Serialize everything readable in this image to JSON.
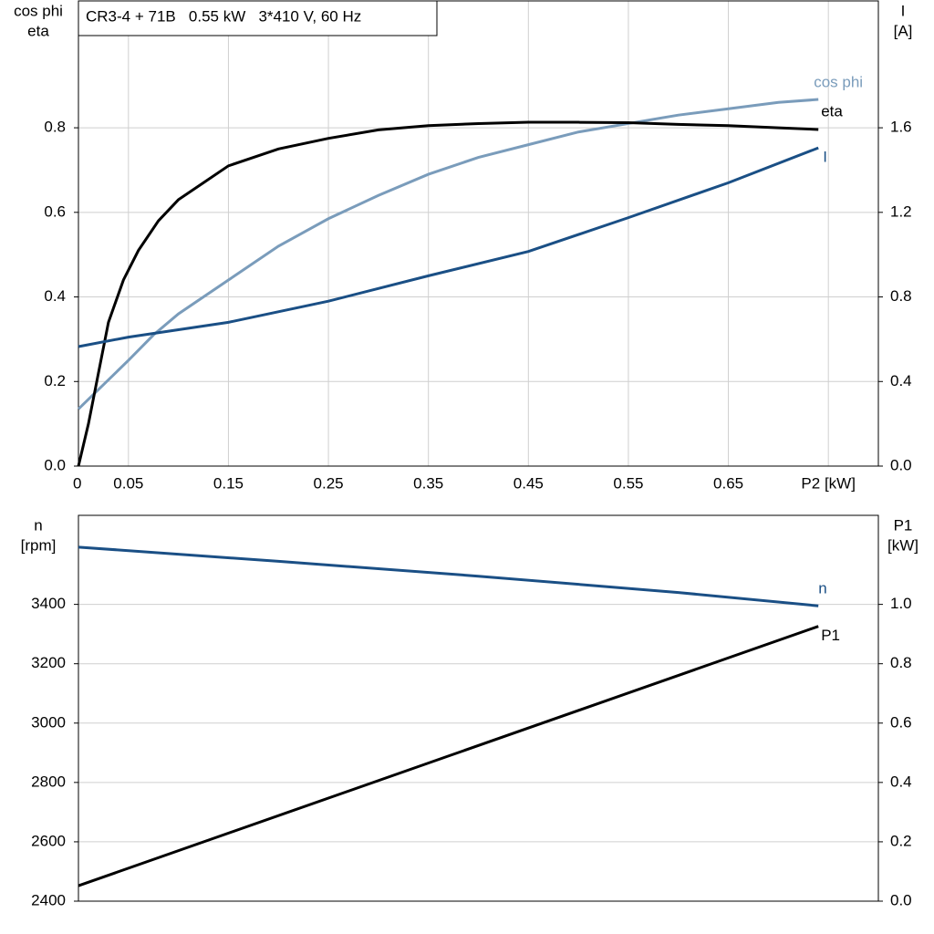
{
  "chart_data": [
    {
      "type": "line",
      "title": "CR3-4 + 71B   0.55 kW   3*410 V, 60 Hz",
      "ylabel": [
        "cos phi",
        "eta"
      ],
      "y2label": [
        "I",
        "[A]"
      ],
      "xlim": [
        0,
        0.8
      ],
      "xticks": [
        {
          "value": 0,
          "label": "0"
        },
        0.05,
        0.15,
        0.25,
        0.35,
        0.45,
        0.55,
        0.65,
        {
          "value": 0.75,
          "label": "P2 [kW]"
        }
      ],
      "ylim": [
        0,
        1.1
      ],
      "yticks": [
        {
          "value": 0,
          "label": "0.0"
        },
        0.2,
        0.4,
        0.6,
        0.8
      ],
      "y2lim": [
        0,
        2.2
      ],
      "y2ticks": [
        {
          "value": 0,
          "label": "0.0"
        },
        0.4,
        0.8,
        1.2,
        1.6
      ],
      "grid": true,
      "series": [
        {
          "name": "cos phi",
          "color": "#7a9cbb",
          "x": [
            0,
            0.05,
            0.075,
            0.1,
            0.15,
            0.2,
            0.25,
            0.3,
            0.35,
            0.4,
            0.45,
            0.5,
            0.55,
            0.6,
            0.65,
            0.7,
            0.74
          ],
          "values": [
            0.135,
            0.25,
            0.31,
            0.36,
            0.44,
            0.52,
            0.585,
            0.64,
            0.69,
            0.73,
            0.76,
            0.79,
            0.81,
            0.83,
            0.845,
            0.86,
            0.867
          ]
        },
        {
          "name": "eta",
          "color": "#000000",
          "x": [
            0,
            0.01,
            0.02,
            0.03,
            0.045,
            0.06,
            0.08,
            0.1,
            0.125,
            0.15,
            0.2,
            0.25,
            0.3,
            0.35,
            0.4,
            0.45,
            0.5,
            0.55,
            0.6,
            0.65,
            0.7,
            0.74
          ],
          "values": [
            0,
            0.1,
            0.22,
            0.34,
            0.44,
            0.51,
            0.58,
            0.63,
            0.67,
            0.71,
            0.75,
            0.775,
            0.795,
            0.805,
            0.81,
            0.813,
            0.813,
            0.812,
            0.808,
            0.805,
            0.8,
            0.796
          ]
        },
        {
          "name": "I",
          "color": "#1a4f85",
          "axis": "y2",
          "x": [
            0,
            0.05,
            0.15,
            0.25,
            0.35,
            0.45,
            0.55,
            0.65,
            0.74
          ],
          "values": [
            0.565,
            0.61,
            0.68,
            0.78,
            0.9,
            1.015,
            1.175,
            1.34,
            1.505
          ]
        }
      ]
    },
    {
      "type": "line",
      "ylabel": [
        "n",
        "[rpm]"
      ],
      "y2label": [
        "P1",
        "[kW]"
      ],
      "xlim": [
        0,
        0.8
      ],
      "ylim": [
        2400,
        3700
      ],
      "yticks": [
        2400,
        2600,
        2800,
        3000,
        3200,
        3400
      ],
      "y2lim": [
        0,
        1.3
      ],
      "y2ticks": [
        {
          "value": 0,
          "label": "0.0"
        },
        0.2,
        0.4,
        0.6,
        0.8,
        {
          "value": 1,
          "label": "1.0"
        }
      ],
      "grid": true,
      "series": [
        {
          "name": "n",
          "color": "#1a4f85",
          "x": [
            0,
            0.2,
            0.4,
            0.6,
            0.74
          ],
          "values": [
            3593,
            3545,
            3495,
            3440,
            3395
          ]
        },
        {
          "name": "P1",
          "color": "#000000",
          "axis": "y2",
          "x": [
            0,
            0.37,
            0.74
          ],
          "values": [
            0.052,
            0.489,
            0.926
          ]
        }
      ]
    }
  ]
}
